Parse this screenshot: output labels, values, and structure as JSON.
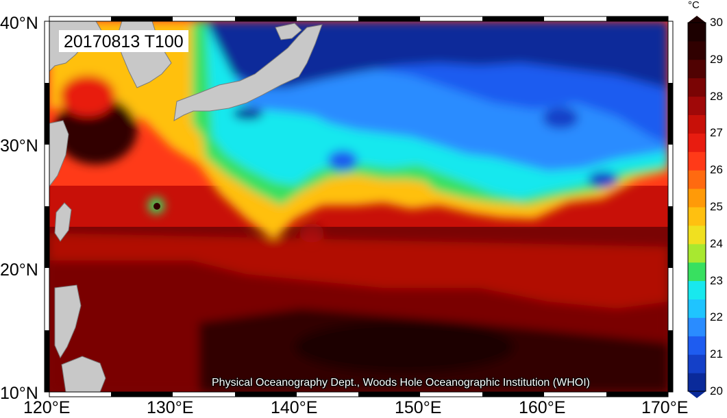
{
  "map": {
    "title": "20170813 T100",
    "credit": "Physical Oceanography Dept., Woods Hole Oceanographic Institution (WHOI)",
    "lat_labels": [
      "40°N",
      "30°N",
      "20°N",
      "10°N"
    ],
    "lon_labels": [
      "120°E",
      "130°E",
      "140°E",
      "150°E",
      "160°E",
      "170°E"
    ],
    "lat_range": [
      10,
      40
    ],
    "lon_range": [
      120,
      170
    ]
  },
  "colorbar": {
    "unit": "°C",
    "ticks": [
      "20",
      "21",
      "22",
      "23",
      "24",
      "25",
      "26",
      "27",
      "28",
      "29",
      "30"
    ],
    "colors": [
      "#0a2a9a",
      "#1440c8",
      "#1e5cf0",
      "#2a8cff",
      "#1fc4ff",
      "#18e8ee",
      "#38e060",
      "#a8e830",
      "#f0e020",
      "#ffc010",
      "#ff9a08",
      "#ff6a10",
      "#ff3a18",
      "#e81c10",
      "#c81008",
      "#a00808",
      "#7a0404",
      "#500202",
      "#300000",
      "#1c0000"
    ]
  },
  "land": {
    "color": "#c8c8c8"
  }
}
